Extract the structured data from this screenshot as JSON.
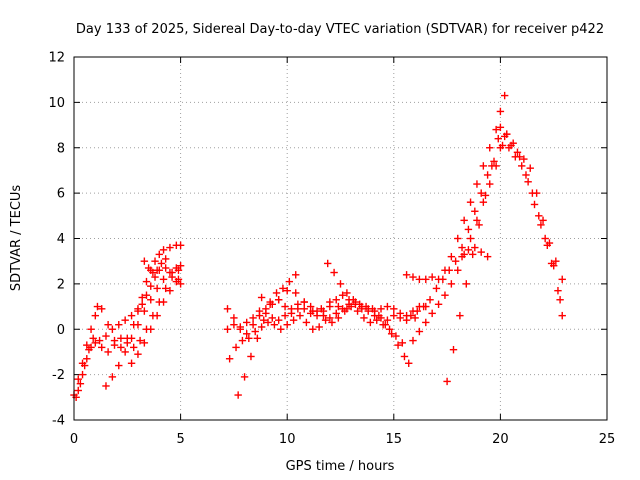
{
  "chart_data": {
    "type": "scatter",
    "title": "Day 133 of 2025, Sidereal Day-to-day VTEC variation (SDTVAR) for receiver p422",
    "xlabel": "GPS time / hours",
    "ylabel": "SDTVAR / TECUs",
    "xlim": [
      0,
      25
    ],
    "ylim": [
      -4,
      12
    ],
    "xticks": [
      0,
      5,
      10,
      15,
      20,
      25
    ],
    "yticks": [
      -4,
      -2,
      0,
      2,
      4,
      6,
      8,
      10,
      12
    ],
    "grid": true,
    "marker": "+",
    "color": "#ff0000",
    "series": [
      {
        "x": [
          0.0,
          0.2,
          0.4,
          0.6,
          0.8,
          1.0,
          1.1,
          1.3,
          1.6,
          1.9,
          2.2,
          2.5,
          2.8,
          3.0,
          3.2,
          3.4,
          3.6,
          3.8,
          4.0,
          4.2,
          4.5,
          4.8,
          5.0
        ],
        "y": [
          -2.9,
          -2.2,
          -1.5,
          -0.7,
          0.0,
          0.6,
          1.0,
          0.9,
          0.2,
          -0.5,
          -0.8,
          -0.4,
          0.2,
          0.8,
          1.4,
          2.1,
          2.6,
          3.0,
          3.3,
          3.5,
          3.6,
          3.7,
          3.7
        ]
      },
      {
        "x": [
          0.1,
          0.3,
          0.5,
          0.7,
          0.9,
          1.2,
          1.5,
          1.8,
          2.1,
          2.4,
          2.7,
          3.0,
          3.2,
          3.4,
          3.6,
          3.8,
          4.0,
          4.3,
          4.6,
          4.9,
          5.0
        ],
        "y": [
          -3.0,
          -2.4,
          -1.6,
          -0.9,
          -0.4,
          -0.5,
          -0.3,
          0.0,
          0.2,
          0.4,
          0.6,
          0.9,
          1.1,
          1.5,
          1.9,
          2.3,
          2.6,
          2.7,
          2.5,
          2.2,
          2.0
        ]
      },
      {
        "x": [
          0.2,
          0.4,
          0.6,
          0.8,
          1.0,
          1.3,
          1.6,
          1.9,
          2.2,
          2.5,
          2.8,
          3.1,
          3.4,
          3.7,
          4.0,
          4.3,
          4.6,
          4.9
        ],
        "y": [
          -2.7,
          -2.0,
          -1.3,
          -0.8,
          -0.6,
          -0.8,
          -1.0,
          -0.7,
          -0.4,
          -0.6,
          -0.8,
          -0.5,
          0.0,
          0.6,
          1.2,
          1.8,
          2.3,
          2.6
        ]
      },
      {
        "x": [
          1.5,
          1.8,
          2.1,
          2.4,
          2.7,
          3.0,
          3.3,
          3.6,
          3.9,
          4.2,
          4.5,
          4.8,
          5.0
        ],
        "y": [
          -2.5,
          -2.1,
          -1.6,
          -1.0,
          -0.4,
          0.2,
          0.8,
          1.3,
          1.8,
          2.2,
          2.5,
          2.7,
          2.8
        ]
      },
      {
        "x": [
          2.7,
          3.0,
          3.3,
          3.6,
          3.9,
          4.2,
          4.5,
          4.8
        ],
        "y": [
          -1.5,
          -1.1,
          -0.6,
          0.0,
          0.6,
          1.2,
          1.7,
          2.1
        ]
      },
      {
        "x": [
          3.3,
          3.5,
          3.7,
          3.9,
          4.1,
          4.3
        ],
        "y": [
          3.0,
          2.7,
          2.5,
          2.6,
          2.9,
          3.1
        ]
      },
      {
        "x": [
          7.2,
          7.5,
          7.8,
          8.1,
          8.4,
          8.7,
          9.0,
          9.3,
          9.6,
          9.9,
          10.2,
          10.5,
          10.8,
          11.1,
          11.4,
          11.7,
          12.0,
          12.3,
          12.6,
          12.9,
          13.2,
          13.5,
          13.8,
          14.1,
          14.4,
          14.7,
          15.0,
          15.3,
          15.6,
          15.9,
          16.2,
          16.5
        ],
        "y": [
          0.9,
          0.5,
          0.0,
          -0.2,
          0.2,
          0.6,
          0.9,
          1.1,
          1.3,
          1.0,
          0.7,
          0.9,
          1.2,
          1.0,
          0.8,
          0.6,
          0.5,
          0.7,
          0.9,
          1.1,
          1.2,
          1.0,
          0.9,
          0.8,
          0.9,
          1.0,
          0.9,
          0.7,
          0.6,
          0.8,
          1.0,
          1.0
        ]
      },
      {
        "x": [
          7.2,
          7.5,
          7.8,
          8.1,
          8.4,
          8.7,
          9.0,
          9.3,
          9.6,
          9.9,
          10.2,
          10.5,
          10.8,
          11.1,
          11.4,
          11.7,
          12.0,
          12.3,
          12.6,
          12.9,
          13.2,
          13.5,
          13.8,
          14.1,
          14.4,
          14.7,
          15.0,
          15.3,
          15.6,
          16.0
        ],
        "y": [
          0.0,
          0.2,
          0.1,
          0.3,
          0.5,
          0.8,
          0.7,
          0.5,
          0.4,
          0.6,
          0.9,
          1.1,
          0.9,
          0.7,
          0.6,
          0.8,
          1.0,
          1.3,
          1.5,
          1.3,
          1.1,
          0.9,
          0.8,
          0.6,
          0.5,
          0.4,
          0.6,
          0.5,
          0.4,
          0.5
        ]
      },
      {
        "x": [
          7.3,
          7.6,
          7.9,
          8.2,
          8.5,
          8.8,
          9.1,
          9.4,
          9.7,
          10.0,
          10.3,
          10.6,
          10.9,
          11.2,
          11.5,
          11.8,
          12.1,
          12.4,
          12.7,
          13.0,
          13.3,
          13.6,
          13.9,
          14.2,
          14.5,
          14.8,
          15.1,
          15.4
        ],
        "y": [
          -1.3,
          -0.8,
          -0.5,
          -0.4,
          -0.1,
          0.1,
          0.3,
          0.2,
          0.0,
          0.2,
          0.4,
          0.6,
          0.3,
          0.0,
          0.1,
          0.4,
          0.3,
          0.5,
          0.8,
          1.0,
          0.8,
          0.5,
          0.3,
          0.4,
          0.2,
          0.0,
          -0.3,
          -0.6
        ]
      },
      {
        "x": [
          7.7,
          8.0,
          8.3,
          8.6,
          8.9,
          9.2,
          9.5,
          9.8,
          10.1,
          10.4
        ],
        "y": [
          -2.9,
          -2.1,
          -1.2,
          -0.4,
          0.4,
          1.2,
          1.6,
          1.8,
          2.1,
          2.4
        ]
      },
      {
        "x": [
          8.8,
          9.2,
          9.6,
          10.0,
          10.4,
          10.8,
          11.2,
          11.6,
          12.0,
          12.4,
          12.8
        ],
        "y": [
          1.4,
          1.1,
          1.3,
          1.7,
          1.6,
          1.2,
          0.8,
          0.9,
          1.2,
          1.0,
          0.9
        ]
      },
      {
        "x": [
          11.9,
          12.2,
          12.5,
          12.8,
          13.1,
          13.4,
          13.7,
          14.0
        ],
        "y": [
          2.9,
          2.5,
          2.0,
          1.6,
          1.3,
          1.1,
          1.0,
          0.9
        ]
      },
      {
        "x": [
          14.3,
          14.6,
          14.9,
          15.2,
          15.5,
          15.7
        ],
        "y": [
          0.6,
          0.2,
          -0.2,
          -0.7,
          -1.2,
          -1.5
        ]
      },
      {
        "x": [
          15.6,
          15.9,
          16.2,
          16.5,
          16.8,
          17.1,
          17.4,
          17.7,
          18.0,
          18.3,
          18.6,
          18.9,
          19.2,
          19.5,
          19.8,
          20.0,
          20.2
        ],
        "y": [
          2.4,
          2.3,
          2.2,
          2.2,
          2.3,
          2.2,
          2.6,
          3.2,
          4.0,
          4.8,
          5.6,
          6.4,
          7.2,
          8.0,
          8.8,
          9.6,
          10.3
        ]
      },
      {
        "x": [
          15.8,
          16.1,
          16.4,
          16.7,
          17.0,
          17.3,
          17.6,
          17.9,
          18.2,
          18.5,
          18.8,
          19.1,
          19.4,
          19.7,
          20.0,
          20.3
        ],
        "y": [
          0.6,
          0.8,
          1.0,
          1.3,
          1.8,
          2.2,
          2.6,
          3.0,
          3.6,
          4.4,
          5.2,
          6.0,
          6.8,
          7.4,
          8.0,
          8.6
        ]
      },
      {
        "x": [
          15.9,
          16.2,
          16.5,
          16.8,
          17.1,
          17.4,
          17.7,
          18.0,
          18.3,
          18.6,
          18.9,
          19.2,
          19.5,
          19.8,
          20.1
        ],
        "y": [
          -0.5,
          -0.1,
          0.3,
          0.7,
          1.1,
          1.5,
          2.0,
          2.6,
          3.3,
          4.0,
          4.8,
          5.6,
          6.4,
          7.2,
          8.1
        ]
      },
      {
        "x": [
          17.5,
          17.8,
          18.1,
          18.4,
          18.7,
          19.0,
          19.3,
          19.6,
          19.9
        ],
        "y": [
          -2.3,
          -0.9,
          0.6,
          2.0,
          3.3,
          4.6,
          5.9,
          7.2,
          8.4
        ]
      },
      {
        "x": [
          18.2,
          18.5,
          18.8,
          19.1,
          19.4
        ],
        "y": [
          3.2,
          3.5,
          3.6,
          3.4,
          3.2
        ]
      },
      {
        "x": [
          20.0,
          20.3,
          20.6,
          20.9,
          21.2,
          21.5,
          21.8,
          22.1,
          22.4,
          22.7,
          22.9
        ],
        "y": [
          8.9,
          8.6,
          8.2,
          7.6,
          6.8,
          6.0,
          5.0,
          4.0,
          2.9,
          1.7,
          0.6
        ]
      },
      {
        "x": [
          20.2,
          20.5,
          20.8,
          21.1,
          21.4,
          21.7,
          22.0,
          22.3,
          22.6,
          22.9
        ],
        "y": [
          8.5,
          8.1,
          7.8,
          7.5,
          7.1,
          6.0,
          4.8,
          3.8,
          3.0,
          2.2
        ]
      },
      {
        "x": [
          20.4,
          20.7,
          21.0,
          21.3,
          21.6,
          21.9,
          22.2,
          22.5,
          22.8
        ],
        "y": [
          8.0,
          7.6,
          7.2,
          6.5,
          5.5,
          4.6,
          3.7,
          2.8,
          1.3
        ]
      }
    ]
  }
}
